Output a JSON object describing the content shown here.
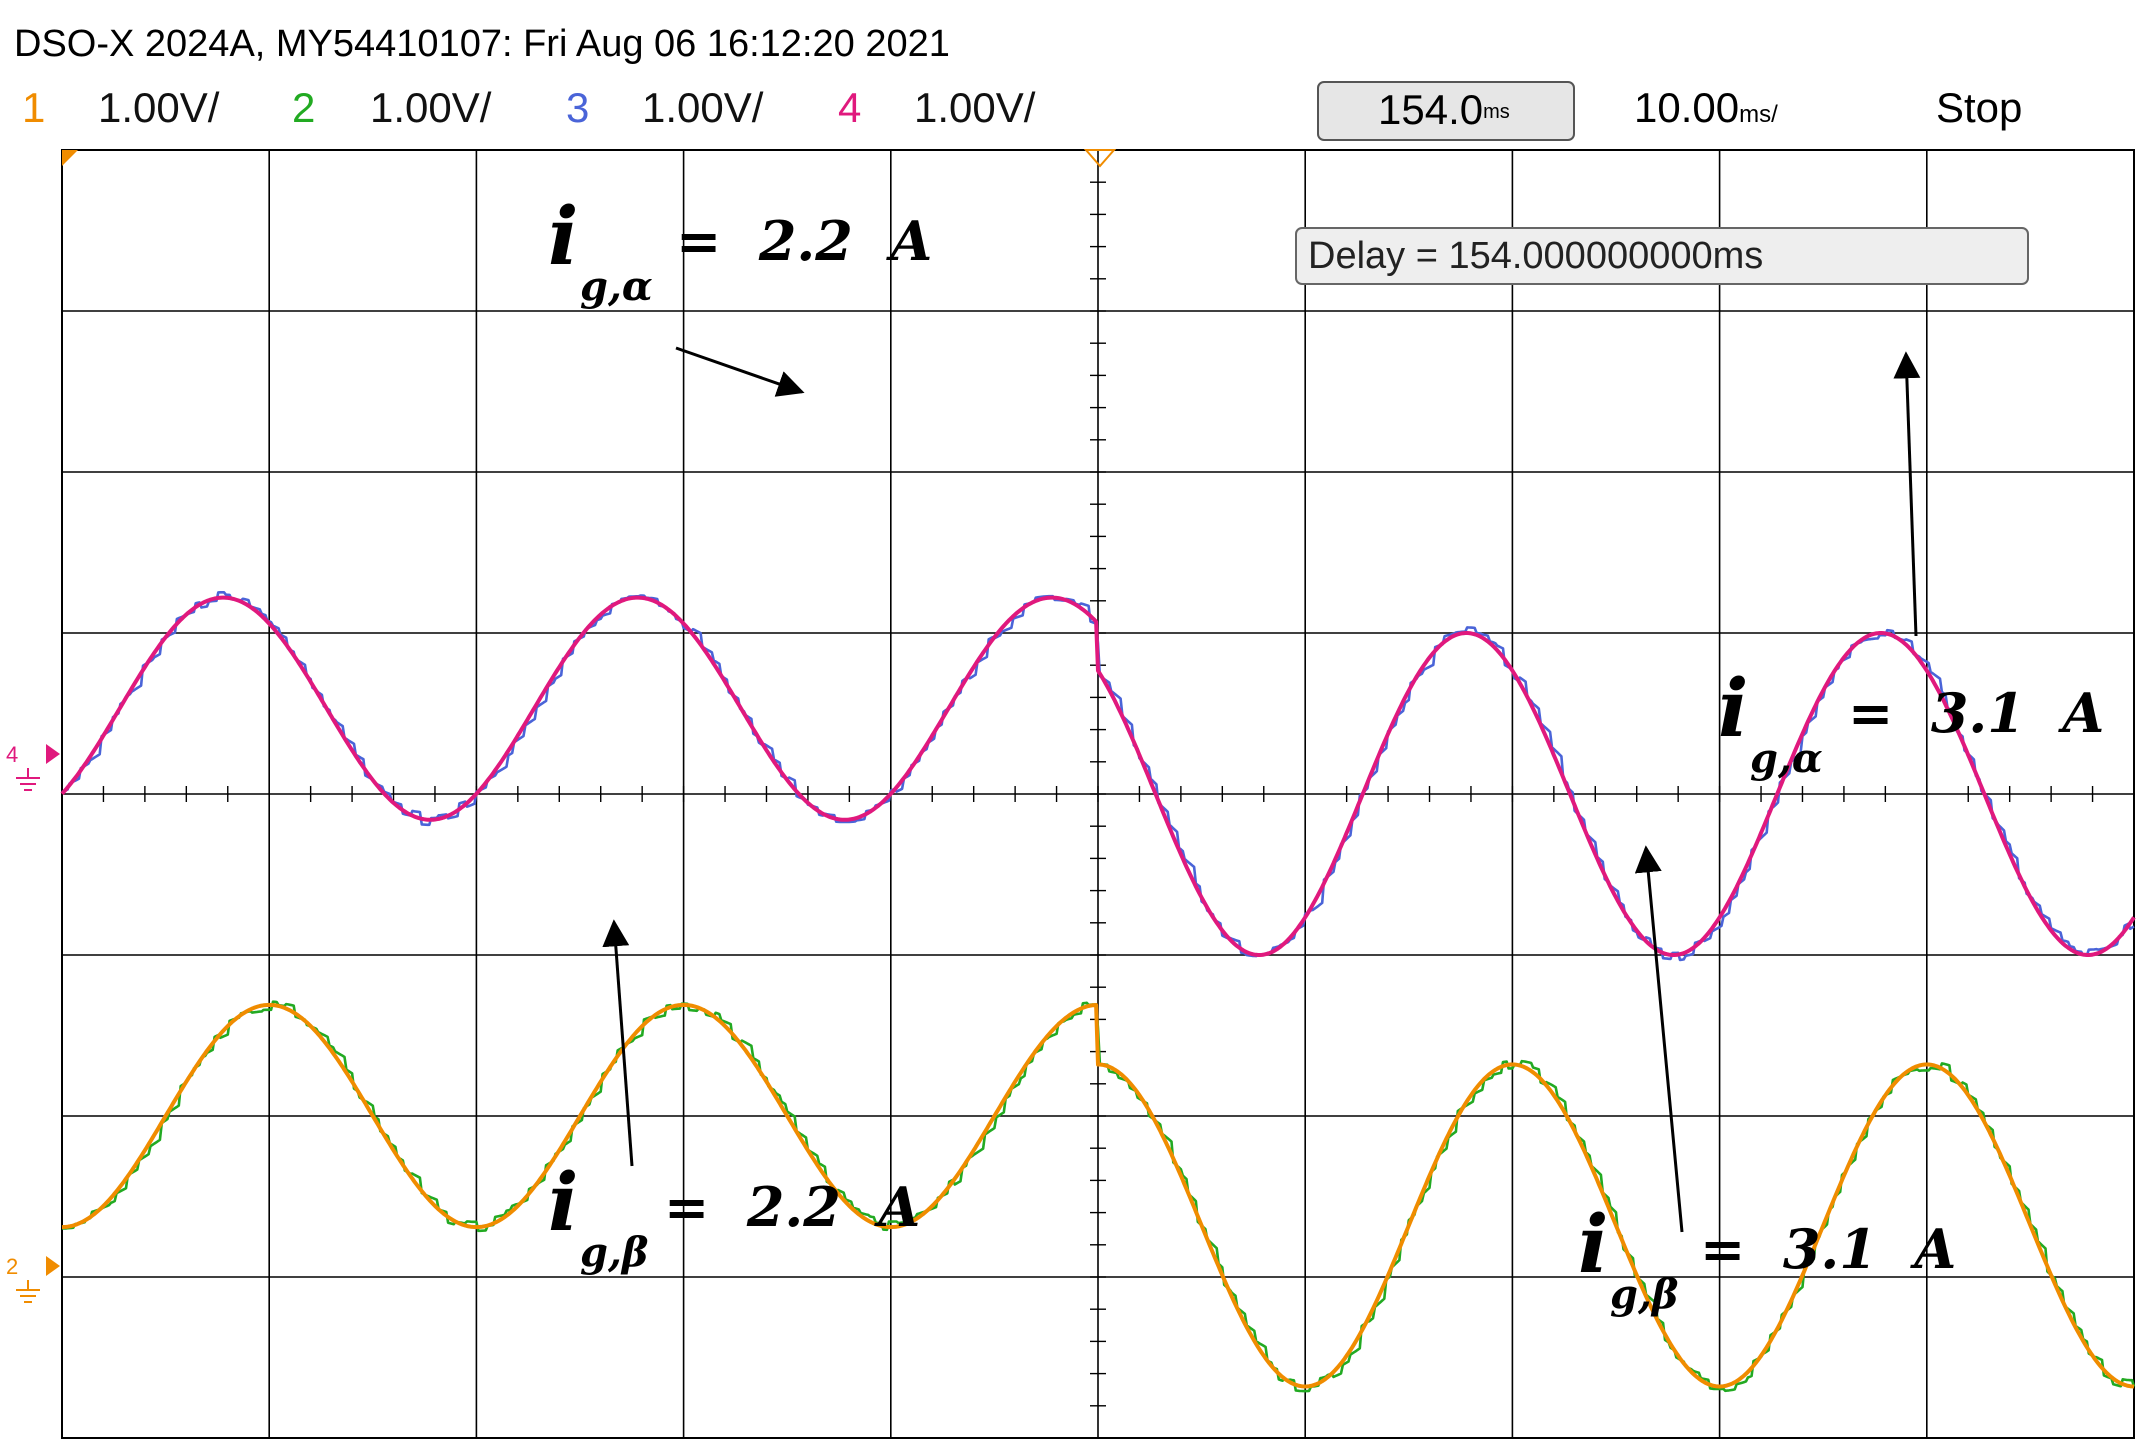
{
  "header": {
    "title": "DSO-X 2024A, MY54410107: Fri Aug 06 16:12:20 2021",
    "channels": [
      {
        "num": "1",
        "scale": "1.00V/",
        "color": "#f08c00"
      },
      {
        "num": "2",
        "scale": "1.00V/",
        "color": "#22aa22"
      },
      {
        "num": "3",
        "scale": "1.00V/",
        "color": "#4a64d8"
      },
      {
        "num": "4",
        "scale": "1.00V/",
        "color": "#e0197d"
      }
    ],
    "delay_box": "154.0",
    "delay_unit": "ms",
    "timebase": "10.00",
    "timebase_unit": "ms/",
    "run_state": "Stop"
  },
  "delay_readout": "Delay = 154.000000000ms",
  "ground_markers": {
    "ch4": "4",
    "ch2": "2"
  },
  "annotations": [
    {
      "main": "i",
      "sub": "g,α",
      "text": "=  2.2  A"
    },
    {
      "main": "i",
      "sub": "g,α",
      "text": "=  3.1  A"
    },
    {
      "main": "i",
      "sub": "g,β",
      "text": "=  2.2  A"
    },
    {
      "main": "i",
      "sub": "g,β",
      "text": "=  3.1  A"
    }
  ],
  "chart_data": {
    "type": "line",
    "grid": true,
    "x_divisions": 10,
    "y_divisions": 8,
    "time_per_div_ms": 10,
    "delay_ms": 154,
    "step_time_ms": 154,
    "series": [
      {
        "channel": "3",
        "color": "#4a64d8",
        "group": "alpha",
        "role": "measured",
        "offset_div": 4.0,
        "amp_before_div": 0.69,
        "amp_after_div": 1.0,
        "period_div": 2.0,
        "phase_deg_at_left": -50,
        "dc_before_div": 0.53,
        "dc_after_div": 0.0
      },
      {
        "channel": "4",
        "color": "#e0197d",
        "group": "alpha",
        "role": "reference",
        "offset_div": 4.0,
        "amp_before_div": 0.69,
        "amp_after_div": 1.0,
        "period_div": 2.0,
        "phase_deg_at_left": -50,
        "dc_before_div": 0.53,
        "dc_after_div": 0.0
      },
      {
        "channel": "2",
        "color": "#22aa22",
        "group": "beta",
        "role": "measured",
        "offset_div": 1.0,
        "amp_before_div": 0.69,
        "amp_after_div": 1.0,
        "period_div": 2.0,
        "phase_deg_at_left": -90,
        "dc_before_div": 1.0,
        "dc_after_div": 0.32
      },
      {
        "channel": "1",
        "color": "#f08c00",
        "group": "beta",
        "role": "reference",
        "offset_div": 1.0,
        "amp_before_div": 0.69,
        "amp_after_div": 1.0,
        "period_div": 2.0,
        "phase_deg_at_left": -90,
        "dc_before_div": 1.0,
        "dc_after_div": 0.32
      }
    ]
  }
}
